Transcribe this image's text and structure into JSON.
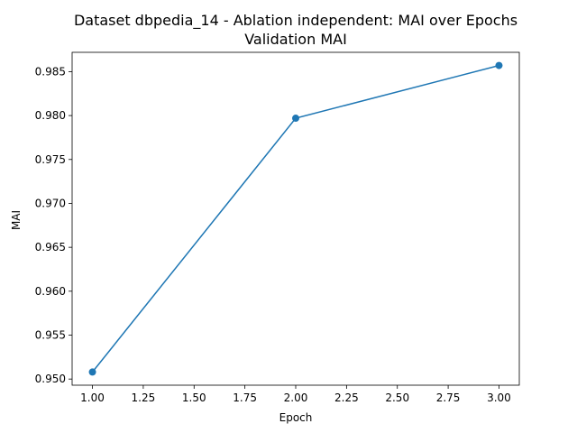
{
  "chart_data": {
    "type": "line",
    "title": "Dataset dbpedia_14 - Ablation independent: MAI over Epochs",
    "subtitle": "Validation MAI",
    "xlabel": "Epoch",
    "ylabel": "MAI",
    "x": [
      1.0,
      2.0,
      3.0
    ],
    "series": [
      {
        "values": [
          0.9508,
          0.9797,
          0.9857
        ]
      }
    ],
    "xlim": [
      0.9,
      3.1
    ],
    "ylim": [
      0.9493,
      0.9872
    ],
    "xticks": [
      1.0,
      1.25,
      1.5,
      1.75,
      2.0,
      2.25,
      2.5,
      2.75,
      3.0
    ],
    "xtick_labels": [
      "1.00",
      "1.25",
      "1.50",
      "1.75",
      "2.00",
      "2.25",
      "2.50",
      "2.75",
      "3.00"
    ],
    "yticks": [
      0.95,
      0.955,
      0.96,
      0.965,
      0.97,
      0.975,
      0.98,
      0.985
    ],
    "ytick_labels": [
      "0.950",
      "0.955",
      "0.960",
      "0.965",
      "0.970",
      "0.975",
      "0.980",
      "0.985"
    ],
    "grid": false,
    "line_color": "#1f77b4",
    "marker": "circle"
  }
}
